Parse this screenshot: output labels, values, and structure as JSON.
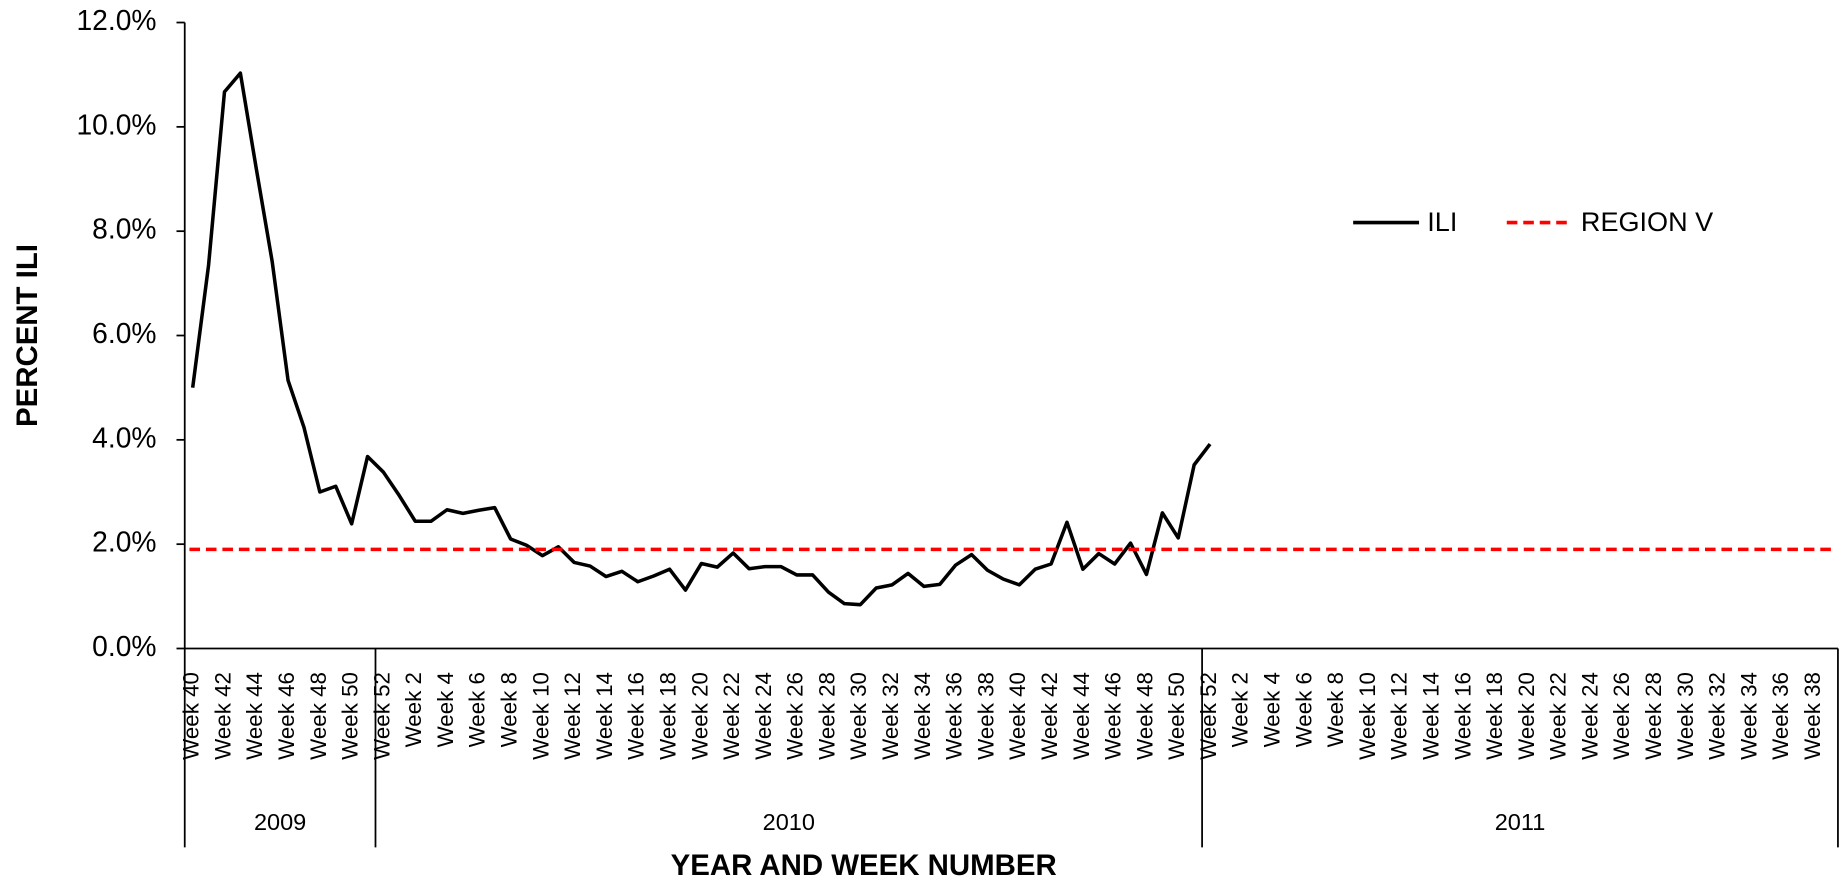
{
  "chart_data": {
    "type": "line",
    "x_label": "YEAR AND WEEK NUMBER",
    "y_label": "PERCENT ILI",
    "groups": [
      {
        "label": "2009",
        "categories": [
          "Week 40",
          null,
          "Week 42",
          null,
          "Week 44",
          null,
          "Week 46",
          null,
          "Week 48",
          null,
          "Week 50",
          null
        ]
      },
      {
        "label": "2010",
        "categories": [
          "Week 52",
          null,
          "Week 2",
          null,
          "Week 4",
          null,
          "Week 6",
          null,
          "Week 8",
          null,
          "Week 10",
          null,
          "Week 12",
          null,
          "Week 14",
          null,
          "Week 16",
          null,
          "Week 18",
          null,
          "Week 20",
          null,
          "Week 22",
          null,
          "Week 24",
          null,
          "Week 26",
          null,
          "Week 28",
          null,
          "Week 30",
          null,
          "Week 32",
          null,
          "Week 34",
          null,
          "Week 36",
          null,
          "Week 38",
          null,
          "Week 40",
          null,
          "Week 42",
          null,
          "Week 44",
          null,
          "Week 46",
          null,
          "Week 48",
          null,
          "Week 50",
          null
        ]
      },
      {
        "label": "2011",
        "categories": [
          "Week 52",
          null,
          "Week 2",
          null,
          "Week 4",
          null,
          "Week 6",
          null,
          "Week 8",
          null,
          "Week 10",
          null,
          "Week 12",
          null,
          "Week 14",
          null,
          "Week 16",
          null,
          "Week 18",
          null,
          "Week 20",
          null,
          "Week 22",
          null,
          "Week 24",
          null,
          "Week 26",
          null,
          "Week 28",
          null,
          "Week 30",
          null,
          "Week 32",
          null,
          "Week 34",
          null,
          "Week 36",
          null,
          "Week 38",
          null
        ]
      }
    ],
    "series": [
      {
        "name": "ILI",
        "color": "#000000",
        "style": "solid",
        "values": [
          5.0,
          7.35,
          10.67,
          11.03,
          9.2,
          7.42,
          5.14,
          4.24,
          3.0,
          3.11,
          2.39,
          3.68,
          3.38,
          2.93,
          2.44,
          2.44,
          2.66,
          2.59,
          2.65,
          2.7,
          2.1,
          1.98,
          1.78,
          1.95,
          1.65,
          1.58,
          1.38,
          1.48,
          1.28,
          1.39,
          1.52,
          1.12,
          1.63,
          1.56,
          1.83,
          1.53,
          1.57,
          1.57,
          1.41,
          1.41,
          1.08,
          0.86,
          0.84,
          1.16,
          1.22,
          1.44,
          1.19,
          1.23,
          1.6,
          1.8,
          1.5,
          1.33,
          1.22,
          1.52,
          1.62,
          2.42,
          1.52,
          1.82,
          1.62,
          2.02,
          1.42,
          2.6,
          2.12,
          3.52,
          3.92,
          null,
          null,
          null,
          null,
          null,
          null,
          null,
          null,
          null,
          null,
          null,
          null,
          null,
          null,
          null,
          null,
          null,
          null,
          null,
          null,
          null,
          null,
          null,
          null,
          null,
          null,
          null,
          null,
          null,
          null,
          null,
          null,
          null,
          null,
          null,
          null,
          null,
          null,
          null
        ]
      },
      {
        "name": "REGION V",
        "color": "#ff0000",
        "style": "dashed",
        "value": 1.9
      }
    ],
    "ylim": [
      0,
      12
    ],
    "yticks": [
      {
        "value": 0,
        "label": "0.0%"
      },
      {
        "value": 2,
        "label": "2.0%"
      },
      {
        "value": 4,
        "label": "4.0%"
      },
      {
        "value": 6,
        "label": "6.0%"
      },
      {
        "value": 8,
        "label": "8.0%"
      },
      {
        "value": 10,
        "label": "10.0%"
      },
      {
        "value": 12,
        "label": "12.0%"
      }
    ],
    "grid": false,
    "legend": "top-right"
  }
}
